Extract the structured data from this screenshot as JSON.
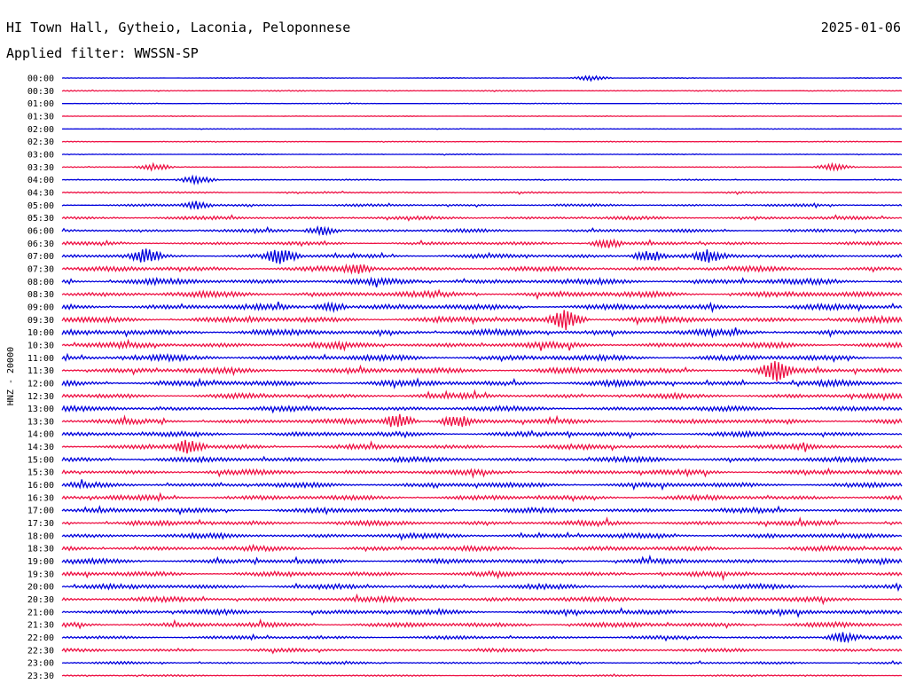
{
  "header": {
    "station": "HI Town Hall, Gytheio, Laconia, Peloponnese",
    "date": "2025-01-06",
    "filter": "Applied filter: WWSSN-SP"
  },
  "chart_data": {
    "type": "line",
    "ylabel": "HNZ - 20000",
    "colors": [
      "#0000dd",
      "#ee1144"
    ],
    "rows": [
      "00:00",
      "00:30",
      "01:00",
      "01:30",
      "02:00",
      "02:30",
      "03:00",
      "03:30",
      "04:00",
      "04:30",
      "05:00",
      "05:30",
      "06:00",
      "06:30",
      "07:00",
      "07:30",
      "08:00",
      "08:30",
      "09:00",
      "09:30",
      "10:00",
      "10:30",
      "11:00",
      "11:30",
      "12:00",
      "12:30",
      "13:00",
      "13:30",
      "14:00",
      "14:30",
      "15:00",
      "15:30",
      "16:00",
      "16:30",
      "17:00",
      "17:30",
      "18:00",
      "18:30",
      "19:00",
      "19:30",
      "20:00",
      "20:30",
      "21:00",
      "21:30",
      "22:00",
      "22:30",
      "23:00",
      "23:30"
    ],
    "noise_level": [
      0.4,
      0.6,
      0.4,
      0.4,
      0.4,
      0.5,
      0.5,
      0.5,
      0.7,
      1.0,
      1.5,
      2.0,
      2.0,
      2.0,
      2.5,
      3.0,
      3.5,
      3.5,
      3.5,
      3.5,
      3.5,
      3.5,
      3.5,
      3.5,
      3.5,
      3.0,
      3.0,
      3.0,
      3.0,
      3.0,
      3.0,
      3.0,
      3.0,
      3.0,
      3.0,
      3.0,
      3.0,
      3.0,
      3.0,
      3.0,
      3.0,
      3.0,
      3.0,
      3.0,
      2.0,
      2.0,
      1.5,
      1.0
    ],
    "events": [
      {
        "row": "07:00",
        "t": 0.1,
        "amp": 9
      },
      {
        "row": "07:00",
        "t": 0.26,
        "amp": 10
      },
      {
        "row": "07:00",
        "t": 0.7,
        "amp": 7
      },
      {
        "row": "07:00",
        "t": 0.77,
        "amp": 8
      },
      {
        "row": "07:30",
        "t": 0.35,
        "amp": 7
      },
      {
        "row": "06:30",
        "t": 0.65,
        "amp": 6
      },
      {
        "row": "09:30",
        "t": 0.6,
        "amp": 12
      },
      {
        "row": "11:30",
        "t": 0.85,
        "amp": 13
      },
      {
        "row": "13:30",
        "t": 0.4,
        "amp": 9
      },
      {
        "row": "13:30",
        "t": 0.47,
        "amp": 8
      },
      {
        "row": "14:30",
        "t": 0.15,
        "amp": 9
      },
      {
        "row": "09:00",
        "t": 0.32,
        "amp": 6
      },
      {
        "row": "04:00",
        "t": 0.16,
        "amp": 5
      },
      {
        "row": "05:00",
        "t": 0.16,
        "amp": 5
      },
      {
        "row": "06:00",
        "t": 0.31,
        "amp": 5
      },
      {
        "row": "03:30",
        "t": 0.11,
        "amp": 4
      },
      {
        "row": "03:30",
        "t": 0.92,
        "amp": 4
      },
      {
        "row": "00:00",
        "t": 0.63,
        "amp": 3
      },
      {
        "row": "22:00",
        "t": 0.93,
        "amp": 6
      }
    ]
  }
}
